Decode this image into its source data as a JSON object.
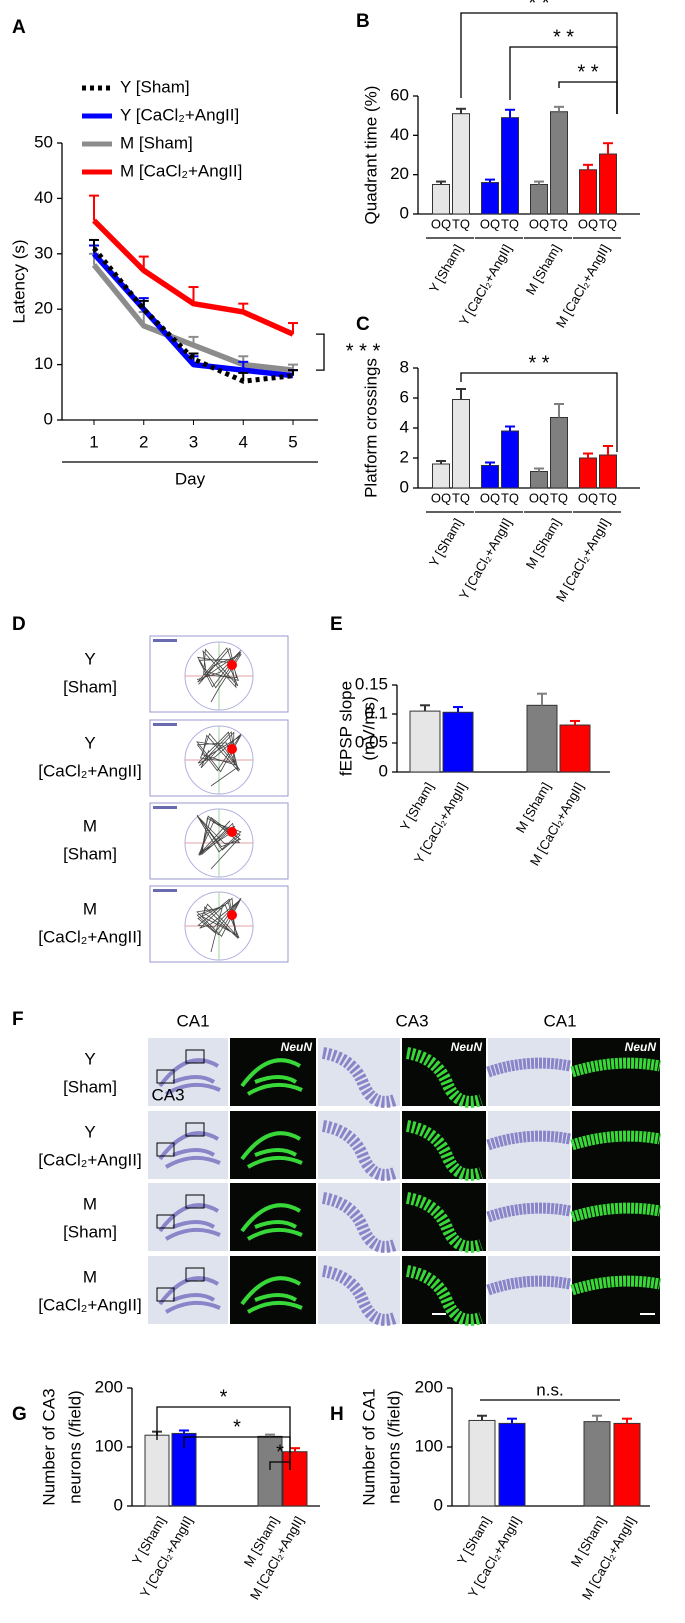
{
  "chart_data": [
    {
      "panel": "A",
      "type": "line",
      "ylabel": "Latency (s)",
      "xlabel": "Day",
      "categories": [
        "1",
        "2",
        "3",
        "4",
        "5"
      ],
      "ylim": [
        0,
        50
      ],
      "yticks": [
        0,
        10,
        20,
        30,
        40,
        50
      ],
      "series": [
        {
          "name": "Y [Sham]",
          "color": "#000000",
          "style": "dotted",
          "values": [
            31,
            20,
            11,
            7,
            8
          ],
          "errors": [
            1.5,
            1.5,
            1,
            1.5,
            1
          ]
        },
        {
          "name": "Y [CaCl₂+AngII]",
          "color": "#0000ff",
          "style": "solid",
          "values": [
            30,
            20,
            10,
            9,
            8
          ],
          "errors": [
            1.5,
            2,
            1.5,
            1.5,
            1
          ]
        },
        {
          "name": "M [Sham]",
          "color": "#8c8c8c",
          "style": "solid",
          "values": [
            28,
            17,
            13.5,
            10,
            9
          ],
          "errors": [
            2,
            2.5,
            1.5,
            1.5,
            1
          ]
        },
        {
          "name": "M [CaCl₂+AngII]",
          "color": "#ff0000",
          "style": "solid",
          "values": [
            36,
            27,
            21,
            19.5,
            15.5
          ],
          "errors": [
            4.5,
            2.5,
            3,
            1.5,
            2
          ]
        }
      ],
      "annotations": [
        "* * *"
      ]
    },
    {
      "panel": "B",
      "type": "grouped_bar",
      "ylabel": "Quadrant time (%)",
      "categories": [
        "Y [Sham]",
        "Y [CaCl₂+AngII]",
        "M [Sham]",
        "M [CaCl₂+AngII]"
      ],
      "colors": [
        "#e6e6e6",
        "#0000ff",
        "#7f7f7f",
        "#ff0000"
      ],
      "series": [
        {
          "name": "OQ",
          "values": [
            15,
            16,
            15,
            22.5
          ],
          "errors": [
            1.5,
            1.5,
            1.5,
            2.5
          ]
        },
        {
          "name": "TQ",
          "values": [
            51,
            49,
            52,
            30.5
          ],
          "errors": [
            2.5,
            4,
            2.5,
            5.5
          ]
        }
      ],
      "ylim": [
        0,
        60
      ],
      "yticks": [
        0,
        20,
        40,
        60
      ],
      "annotations": [
        "* *",
        "* *",
        "* *"
      ]
    },
    {
      "panel": "C",
      "type": "grouped_bar",
      "ylabel": "Platform crossings",
      "categories": [
        "Y [Sham]",
        "Y [CaCl₂+AngII]",
        "M [Sham]",
        "M [CaCl₂+AngII]"
      ],
      "colors": [
        "#e6e6e6",
        "#0000ff",
        "#7f7f7f",
        "#ff0000"
      ],
      "series": [
        {
          "name": "OQ",
          "values": [
            1.6,
            1.5,
            1.1,
            2.0
          ],
          "errors": [
            0.2,
            0.2,
            0.2,
            0.3
          ]
        },
        {
          "name": "TQ",
          "values": [
            5.9,
            3.8,
            4.7,
            2.2
          ],
          "errors": [
            0.7,
            0.3,
            0.9,
            0.6
          ]
        }
      ],
      "ylim": [
        0,
        8
      ],
      "yticks": [
        0,
        2,
        4,
        6,
        8
      ],
      "annotations": [
        "* *"
      ]
    },
    {
      "panel": "E",
      "type": "bar",
      "ylabel": [
        "fEPSP slope",
        "(mV/ms)"
      ],
      "categories": [
        "Y [Sham]",
        "Y [CaCl₂+AngII]",
        "M [Sham]",
        "M [CaCl₂+AngII]"
      ],
      "colors": [
        "#e6e6e6",
        "#0000ff",
        "#7f7f7f",
        "#ff0000"
      ],
      "values": [
        0.105,
        0.103,
        0.115,
        0.081
      ],
      "errors": [
        0.01,
        0.009,
        0.02,
        0.007
      ],
      "ylim": [
        0,
        0.15
      ],
      "yticks": [
        0,
        0.05,
        0.1,
        0.15
      ],
      "annotations": []
    },
    {
      "panel": "G",
      "type": "bar",
      "ylabel": [
        "Number of CA3",
        "neurons (/field)"
      ],
      "categories": [
        "Y [Sham]",
        "Y [CaCl₂+AngII]",
        "M [Sham]",
        "M [CaCl₂+AngII]"
      ],
      "colors": [
        "#e6e6e6",
        "#0000ff",
        "#7f7f7f",
        "#ff0000"
      ],
      "values": [
        120,
        123,
        118,
        92
      ],
      "errors": [
        6,
        5,
        3,
        6
      ],
      "ylim": [
        0,
        200
      ],
      "yticks": [
        0,
        100,
        200
      ],
      "annotations": [
        "*",
        "*",
        "*"
      ]
    },
    {
      "panel": "H",
      "type": "bar",
      "ylabel": [
        "Number of CA1",
        "neurons (/field)"
      ],
      "categories": [
        "Y [Sham]",
        "Y [CaCl₂+AngII]",
        "M [Sham]",
        "M [CaCl₂+AngII]"
      ],
      "colors": [
        "#e6e6e6",
        "#0000ff",
        "#7f7f7f",
        "#ff0000"
      ],
      "values": [
        145,
        140,
        143,
        140
      ],
      "errors": [
        8,
        8,
        10,
        8
      ],
      "ylim": [
        0,
        200
      ],
      "yticks": [
        0,
        100,
        200
      ],
      "annotations": [
        "n.s."
      ]
    }
  ],
  "panel_d": {
    "panel": "D",
    "rows": [
      [
        "Y",
        "[Sham]"
      ],
      [
        "Y",
        "[CaCl₂+AngII]"
      ],
      [
        "M",
        "[Sham]"
      ],
      [
        "M",
        "[CaCl₂+AngII]"
      ]
    ]
  },
  "panel_f": {
    "panel": "F",
    "region_labels": [
      "CA1",
      "CA3"
    ],
    "headers": [
      "CA3",
      "CA1"
    ],
    "stain": "NeuN",
    "rows": [
      [
        "Y",
        "[Sham]"
      ],
      [
        "Y",
        "[CaCl₂+AngII]"
      ],
      [
        "M",
        "[Sham]"
      ],
      [
        "M",
        "[CaCl₂+AngII]"
      ]
    ]
  }
}
